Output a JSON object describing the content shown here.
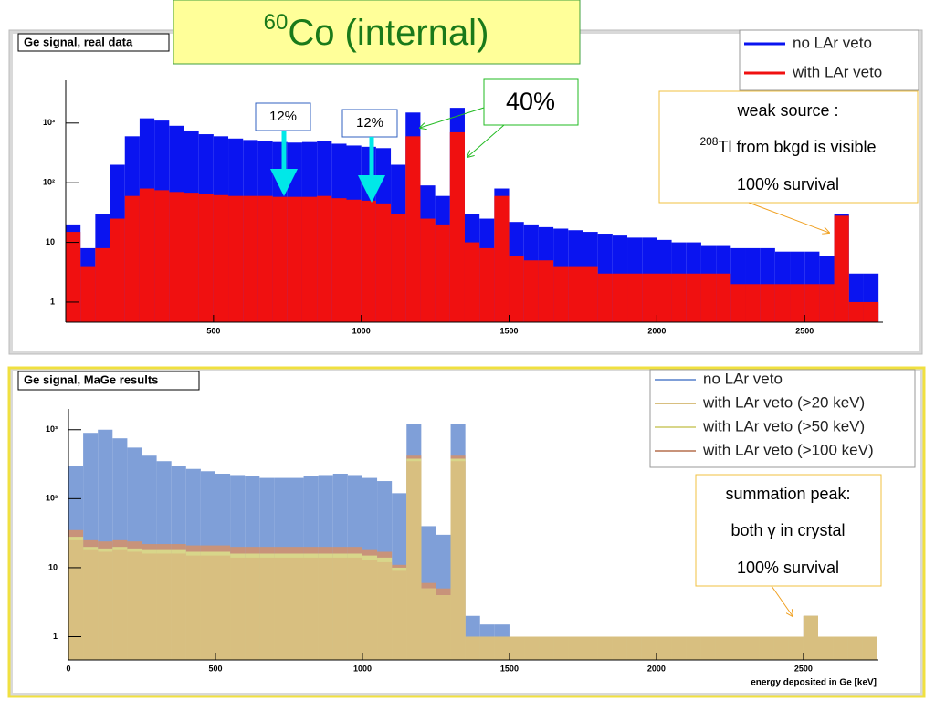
{
  "slide_title": {
    "sup": "60",
    "text": "Co  (internal)"
  },
  "chart_data": [
    {
      "type": "histogram",
      "title": "Ge signal, real data",
      "log_y": true,
      "legend": "top-right",
      "bins": [
        0,
        50,
        100,
        150,
        200,
        250,
        300,
        350,
        400,
        450,
        500,
        550,
        600,
        650,
        700,
        750,
        800,
        850,
        900,
        950,
        1000,
        1050,
        1100,
        1150,
        1200,
        1250,
        1300,
        1350,
        1400,
        1450,
        1500,
        1550,
        1600,
        1650,
        1700,
        1750,
        1800,
        1850,
        1900,
        1950,
        2000,
        2050,
        2100,
        2150,
        2200,
        2250,
        2300,
        2350,
        2400,
        2450,
        2500,
        2550,
        2600,
        2650,
        2700,
        2750
      ],
      "series": [
        {
          "name": "no LAr veto",
          "color": "#0a14f0",
          "values": [
            20,
            8,
            30,
            200,
            600,
            1200,
            1100,
            900,
            750,
            650,
            600,
            550,
            520,
            500,
            480,
            470,
            480,
            500,
            450,
            420,
            400,
            380,
            200,
            1500,
            90,
            60,
            1800,
            30,
            25,
            80,
            22,
            20,
            18,
            17,
            16,
            15,
            14,
            13,
            12,
            12,
            11,
            10,
            10,
            9,
            9,
            8,
            8,
            8,
            7,
            7,
            7,
            6,
            30,
            3,
            3
          ]
        },
        {
          "name": "with LAr veto",
          "color": "#f01010",
          "values": [
            15,
            4,
            8,
            25,
            60,
            80,
            75,
            70,
            68,
            65,
            62,
            60,
            60,
            60,
            58,
            58,
            58,
            60,
            55,
            52,
            50,
            45,
            30,
            600,
            25,
            20,
            700,
            10,
            8,
            60,
            6,
            5,
            5,
            4,
            4,
            4,
            3,
            3,
            3,
            3,
            3,
            3,
            3,
            3,
            3,
            2,
            2,
            2,
            2,
            2,
            2,
            2,
            28,
            1,
            1
          ]
        }
      ],
      "xlim": [
        0,
        2765
      ],
      "xticks": [
        500,
        1000,
        1500,
        2000,
        2500
      ],
      "ylim": [
        0.46,
        5200
      ],
      "yticks": [
        1,
        10,
        {
          "value": 100,
          "label": "10²"
        },
        {
          "value": 1000,
          "label": "10³"
        }
      ],
      "annotations": {
        "veto_a": "12%",
        "veto_b": "12%",
        "peaks": "40%",
        "source": [
          "weak source :",
          {
            "sup": "208",
            "text": "Tl from bkgd is visible"
          },
          "100% survival"
        ]
      }
    },
    {
      "type": "histogram",
      "title": "Ge signal, MaGe results",
      "log_y": true,
      "legend": "top-right",
      "x_label": "energy deposited in Ge [keV]",
      "bins": [
        0,
        50,
        100,
        150,
        200,
        250,
        300,
        350,
        400,
        450,
        500,
        550,
        600,
        650,
        700,
        750,
        800,
        850,
        900,
        950,
        1000,
        1050,
        1100,
        1150,
        1200,
        1250,
        1300,
        1350,
        1400,
        1450,
        1500,
        1550,
        1600,
        1650,
        1700,
        1750,
        1800,
        1850,
        1900,
        1950,
        2000,
        2050,
        2100,
        2150,
        2200,
        2250,
        2300,
        2350,
        2400,
        2450,
        2500,
        2550,
        2600,
        2650,
        2700,
        2750
      ],
      "series": [
        {
          "name": "no LAr veto",
          "color": "#7f9fd8",
          "values": [
            300,
            900,
            1000,
            750,
            550,
            420,
            350,
            300,
            270,
            250,
            230,
            220,
            210,
            200,
            200,
            200,
            210,
            220,
            230,
            220,
            200,
            180,
            120,
            1200,
            40,
            30,
            1200,
            2,
            1.5,
            1.5,
            1,
            1,
            1,
            1,
            1,
            1,
            1,
            1,
            1,
            1,
            1,
            1,
            1,
            1,
            1,
            1,
            1,
            1,
            1,
            1,
            2,
            1,
            1,
            1,
            1
          ]
        },
        {
          "name": "with LAr veto (>20 keV)",
          "color": "#d8bf80",
          "values": [
            25,
            18,
            17,
            18,
            17,
            16,
            16,
            16,
            15,
            15,
            15,
            14,
            14,
            14,
            14,
            14,
            14,
            14,
            14,
            14,
            13,
            12,
            9,
            350,
            5,
            4,
            350,
            1,
            1,
            1,
            1,
            1,
            1,
            1,
            1,
            1,
            1,
            1,
            1,
            1,
            1,
            1,
            1,
            1,
            1,
            1,
            1,
            1,
            1,
            1,
            2,
            1,
            1,
            1,
            1
          ]
        },
        {
          "name": "with LAr veto (>50 keV)",
          "color": "#d8d68a",
          "values": [
            28,
            20,
            19,
            20,
            19,
            18,
            18,
            18,
            17,
            17,
            17,
            16,
            16,
            16,
            16,
            16,
            16,
            16,
            16,
            16,
            15,
            14,
            10,
            380,
            5,
            4,
            380,
            1,
            1,
            1,
            1,
            1,
            1,
            1,
            1,
            1,
            1,
            1,
            1,
            1,
            1,
            1,
            1,
            1,
            1,
            1,
            1,
            1,
            1,
            1,
            2,
            1,
            1,
            1,
            1
          ]
        },
        {
          "name": "with LAr veto (>100 keV)",
          "color": "#c8937a",
          "values": [
            35,
            25,
            24,
            25,
            24,
            22,
            22,
            22,
            21,
            21,
            21,
            20,
            20,
            20,
            20,
            20,
            20,
            20,
            20,
            20,
            18,
            17,
            11,
            420,
            6,
            5,
            420,
            1,
            1,
            1,
            1,
            1,
            1,
            1,
            1,
            1,
            1,
            1,
            1,
            1,
            1,
            1,
            1,
            1,
            1,
            1,
            1,
            1,
            1,
            1,
            2,
            1,
            1,
            1,
            1
          ]
        }
      ],
      "xlim": [
        0,
        2755
      ],
      "xticks": [
        0,
        500,
        1000,
        1500,
        2000,
        2500
      ],
      "ylim": [
        0.46,
        2000
      ],
      "yticks": [
        1,
        10,
        {
          "value": 100,
          "label": "10²"
        },
        {
          "value": 1000,
          "label": "10³"
        }
      ],
      "annotations": {
        "summation": [
          "summation peak:",
          "both γ in crystal",
          "100% survival"
        ]
      }
    }
  ]
}
